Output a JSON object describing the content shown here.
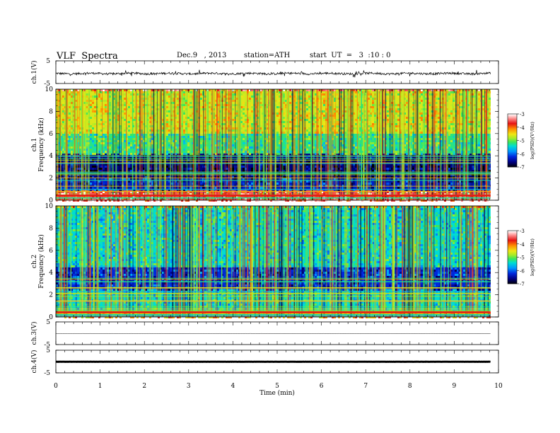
{
  "header": {
    "title": "VLF  Spectra",
    "date": "Dec.9   , 2013",
    "station": "station=ATH",
    "start_ut": "start  UT  =   3  :10 : 0"
  },
  "chart_data": [
    {
      "type": "line",
      "panel": "ch1-waveform",
      "ylabel": "ch.1(V)",
      "ylim": [
        -5,
        5
      ],
      "yticks": [
        "5",
        "-5"
      ],
      "series": [
        {
          "values_summary": "noisy waveform centered near 0 V, amplitude about ±1 V with frequent spikes"
        }
      ]
    },
    {
      "type": "heatmap",
      "panel": "ch1-spectrogram",
      "ylabel_top": "ch.1",
      "ylabel": "Frequency  (kHz)",
      "ylim": [
        0,
        10
      ],
      "yticks": [
        "0",
        "2",
        "4",
        "6",
        "8",
        "10"
      ],
      "colorbar": {
        "label": "log(PSD)(V²/Hz)",
        "range": [
          -7,
          -3
        ],
        "ticks": [
          "-3",
          "-4",
          "-5",
          "-6",
          "-7"
        ]
      },
      "bands": [
        {
          "from_khz": 0,
          "to_khz": 0.9,
          "level": -3.5
        },
        {
          "from_khz": 0.9,
          "to_khz": 2.0,
          "level": -6.3
        },
        {
          "from_khz": 2.0,
          "to_khz": 4.2,
          "level": -6.6
        },
        {
          "from_khz": 4.2,
          "to_khz": 6.0,
          "level": -5.2
        },
        {
          "from_khz": 6.0,
          "to_khz": 10.0,
          "level": -4.6
        }
      ],
      "step_times_min": [
        3.75,
        8.7
      ]
    },
    {
      "type": "heatmap",
      "panel": "ch2-spectrogram",
      "ylabel_top": "ch.2",
      "ylabel": "Frequency  (kHz)",
      "ylim": [
        0,
        10
      ],
      "yticks": [
        "0",
        "2",
        "4",
        "6",
        "8",
        "10"
      ],
      "colorbar": {
        "label": "log(PSD)(V²/Hz)",
        "range": [
          -7,
          -3
        ],
        "ticks": [
          "-3",
          "-4",
          "-5",
          "-6",
          "-7"
        ]
      },
      "bands": [
        {
          "from_khz": 0,
          "to_khz": 0.5,
          "level": -4.3
        },
        {
          "from_khz": 0.5,
          "to_khz": 2.5,
          "level": -5.4
        },
        {
          "from_khz": 2.5,
          "to_khz": 4.5,
          "level": -6.2
        },
        {
          "from_khz": 4.5,
          "to_khz": 10.0,
          "level": -5.4
        }
      ],
      "step_times_min": [
        3.75,
        8.7
      ]
    },
    {
      "type": "line",
      "panel": "ch3-waveform",
      "ylabel": "ch.3(V)",
      "ylim": [
        -5,
        5
      ],
      "yticks": [
        "5",
        "-5"
      ],
      "series": [
        {
          "values_summary": "flat trace near 0 V"
        }
      ]
    },
    {
      "type": "line",
      "panel": "ch4-waveform",
      "ylabel": "ch.4(V)",
      "ylim": [
        -5,
        5
      ],
      "yticks": [
        "5",
        "-5"
      ],
      "series": [
        {
          "values_summary": "thick flat trace near 0 V"
        }
      ]
    }
  ],
  "x_axis": {
    "label": "Time  (min)",
    "xlim": [
      0,
      10
    ],
    "ticks": [
      "0",
      "1",
      "2",
      "3",
      "4",
      "5",
      "6",
      "7",
      "8",
      "9",
      "10"
    ],
    "data_end_min": 9.82
  }
}
